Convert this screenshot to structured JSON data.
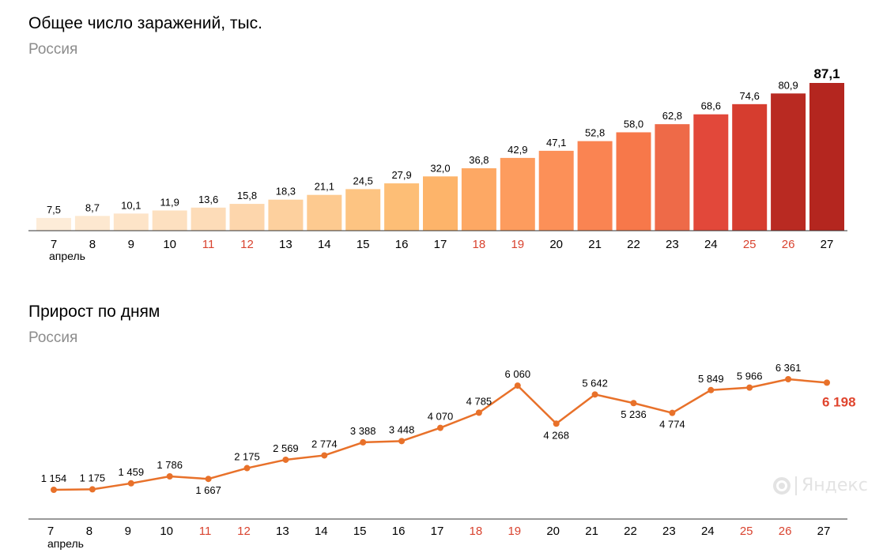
{
  "chart_data": [
    {
      "type": "bar",
      "title": "Общее число заражений, тыс.",
      "subtitle": "Россия",
      "categories": [
        "7",
        "8",
        "9",
        "10",
        "11",
        "12",
        "13",
        "14",
        "15",
        "16",
        "17",
        "18",
        "19",
        "20",
        "21",
        "22",
        "23",
        "24",
        "25",
        "26",
        "27"
      ],
      "month_label": "апрель",
      "weekend_days": [
        "11",
        "12",
        "18",
        "19",
        "25",
        "26"
      ],
      "values": [
        7.5,
        8.7,
        10.1,
        11.9,
        13.6,
        15.8,
        18.3,
        21.1,
        24.5,
        27.9,
        32.0,
        36.8,
        42.9,
        47.1,
        52.8,
        58.0,
        62.8,
        68.6,
        74.6,
        80.9,
        87.1
      ],
      "value_labels": [
        "7,5",
        "8,7",
        "10,1",
        "11,9",
        "13,6",
        "15,8",
        "18,3",
        "21,1",
        "24,5",
        "27,9",
        "32,0",
        "36,8",
        "42,9",
        "47,1",
        "52,8",
        "58,0",
        "62,8",
        "68,6",
        "74,6",
        "80,9",
        "87,1"
      ],
      "bar_colors": [
        "#fdecd8",
        "#fde8d0",
        "#fde4c8",
        "#fde0c0",
        "#fddcb8",
        "#fdd6ac",
        "#fdd09e",
        "#fdca90",
        "#fdc482",
        "#fdbe76",
        "#fdb46a",
        "#fda864",
        "#fd9c5e",
        "#fc9058",
        "#fa8452",
        "#f7784a",
        "#ee6a48",
        "#e2483a",
        "#d63d2f",
        "#b92a22",
        "#b4261f"
      ],
      "ylim": [
        0,
        90
      ]
    },
    {
      "type": "line",
      "title": "Прирост по дням",
      "subtitle": "Россия",
      "categories": [
        "7",
        "8",
        "9",
        "10",
        "11",
        "12",
        "13",
        "14",
        "15",
        "16",
        "17",
        "18",
        "19",
        "20",
        "21",
        "22",
        "23",
        "24",
        "25",
        "26",
        "27"
      ],
      "month_label": "апрель",
      "weekend_days": [
        "11",
        "12",
        "18",
        "19",
        "25",
        "26"
      ],
      "values": [
        1154,
        1175,
        1459,
        1786,
        1667,
        2175,
        2569,
        2774,
        3388,
        3448,
        4070,
        4785,
        6060,
        4268,
        5642,
        5236,
        4774,
        5849,
        5966,
        6361,
        6198
      ],
      "value_labels": [
        "1 154",
        "1 175",
        "1 459",
        "1 786",
        "1 667",
        "2 175",
        "2 569",
        "2 774",
        "3 388",
        "3 448",
        "4 070",
        "4 785",
        "6 060",
        "4 268",
        "5 642",
        "5 236",
        "4 774",
        "5 849",
        "5 966",
        "6 361",
        "6 198"
      ],
      "label_positions": [
        "above",
        "above",
        "above",
        "above",
        "below",
        "above",
        "above",
        "above",
        "above",
        "above",
        "above",
        "above",
        "above",
        "below",
        "above",
        "below",
        "below",
        "above",
        "above",
        "above",
        "right"
      ],
      "line_color": "#e8712a",
      "highlight_color": "#e0452e"
    }
  ],
  "colors": {
    "weekend": "#d9432f",
    "axis": "#333333",
    "text": "#000000",
    "subtitle": "#8c8c8c"
  },
  "watermark": {
    "text": "Яндекс",
    "icon": "yandex-logo-icon"
  }
}
